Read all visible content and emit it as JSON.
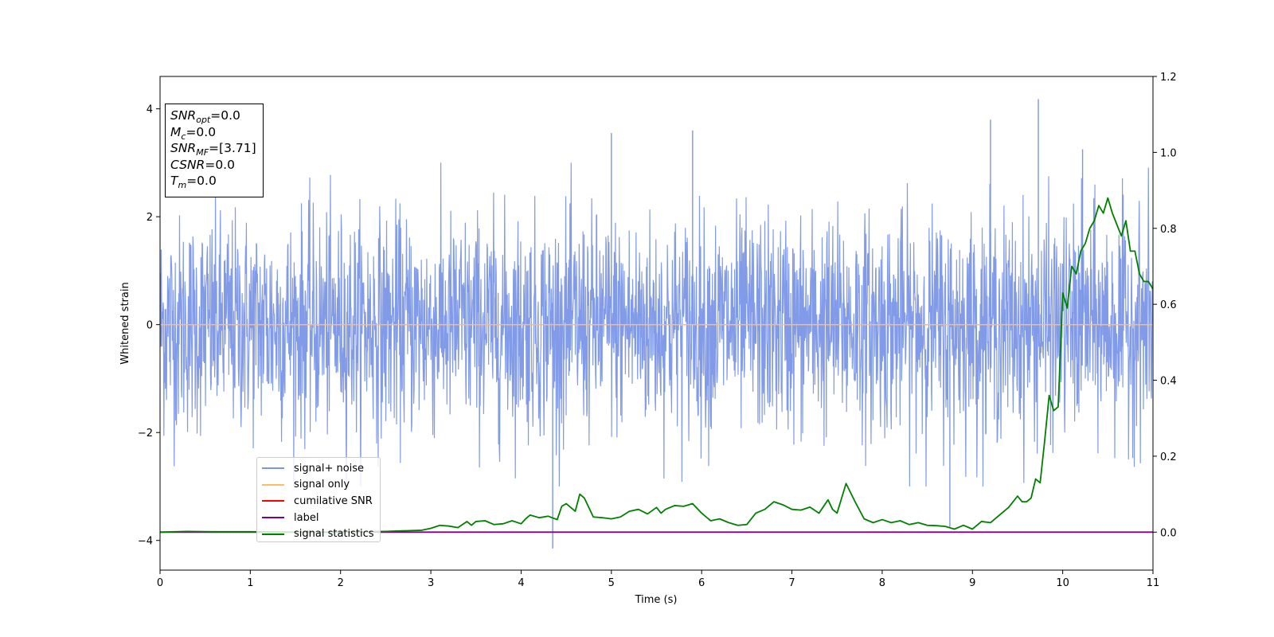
{
  "chart_data": {
    "type": "line",
    "xlabel": "Time (s)",
    "ylabel": "Whitened strain",
    "xlim": [
      0,
      11
    ],
    "ylim_left": [
      -4.55,
      4.6
    ],
    "ylim_right": [
      -0.1,
      1.2
    ],
    "x_ticks": [
      0,
      1,
      2,
      3,
      4,
      5,
      6,
      7,
      8,
      9,
      10,
      11
    ],
    "y_ticks_left": [
      -4,
      -2,
      0,
      2,
      4
    ],
    "y_ticks_right": [
      "0.0",
      "0.2",
      "0.4",
      "0.6",
      "0.8",
      "1.0",
      "1.2"
    ],
    "legend_position": "lower-left",
    "series": [
      {
        "name": "signal+ noise",
        "color": "#7b96e8",
        "axis": "left",
        "description_values": "dense noise trace, typical envelope ±2",
        "envelope": {
          "typical_max": 2.0,
          "typical_min": -2.0
        },
        "notable_peaks": [
          {
            "x": 4.35,
            "y": -4.15
          },
          {
            "x": 5.0,
            "y": 3.55
          },
          {
            "x": 5.9,
            "y": 3.6
          },
          {
            "x": 8.75,
            "y": -3.75
          },
          {
            "x": 9.2,
            "y": 3.8
          },
          {
            "x": 9.73,
            "y": 4.18
          },
          {
            "x": 10.22,
            "y": 3.25
          }
        ]
      },
      {
        "name": "signal only",
        "color": "#ffbb66",
        "axis": "left",
        "x": [
          0,
          11
        ],
        "values": [
          0,
          0
        ]
      },
      {
        "name": "cumilative SNR",
        "color": "#ff0000",
        "axis": "right",
        "x": [],
        "values": []
      },
      {
        "name": "label",
        "color": "#800080",
        "axis": "right",
        "x": [
          0,
          11
        ],
        "values": [
          0,
          0
        ]
      },
      {
        "name": "signal statistics",
        "color": "#008000",
        "axis": "right",
        "x": [
          0,
          0.3,
          0.6,
          1.0,
          1.5,
          2.0,
          2.5,
          2.9,
          3.0,
          3.1,
          3.2,
          3.3,
          3.4,
          3.45,
          3.5,
          3.6,
          3.7,
          3.8,
          3.9,
          4.0,
          4.05,
          4.1,
          4.2,
          4.3,
          4.4,
          4.45,
          4.5,
          4.6,
          4.65,
          4.7,
          4.8,
          4.9,
          5.0,
          5.1,
          5.2,
          5.3,
          5.4,
          5.5,
          5.55,
          5.6,
          5.7,
          5.8,
          5.9,
          6.0,
          6.1,
          6.2,
          6.3,
          6.4,
          6.5,
          6.6,
          6.7,
          6.8,
          6.9,
          7.0,
          7.1,
          7.2,
          7.3,
          7.4,
          7.45,
          7.5,
          7.6,
          7.7,
          7.8,
          7.9,
          8.0,
          8.1,
          8.2,
          8.3,
          8.4,
          8.5,
          8.6,
          8.7,
          8.8,
          8.9,
          9.0,
          9.1,
          9.2,
          9.3,
          9.4,
          9.5,
          9.55,
          9.6,
          9.65,
          9.7,
          9.75,
          9.8,
          9.85,
          9.9,
          9.95,
          10.0,
          10.05,
          10.1,
          10.15,
          10.2,
          10.25,
          10.3,
          10.35,
          10.4,
          10.45,
          10.5,
          10.55,
          10.6,
          10.65,
          10.7,
          10.75,
          10.8,
          10.85,
          10.9,
          10.95,
          11.0
        ],
        "values": [
          0.0,
          0.002,
          0.001,
          0.001,
          0.0,
          0.0,
          0.002,
          0.005,
          0.01,
          0.018,
          0.016,
          0.012,
          0.028,
          0.018,
          0.028,
          0.03,
          0.02,
          0.022,
          0.03,
          0.022,
          0.035,
          0.045,
          0.038,
          0.042,
          0.033,
          0.068,
          0.075,
          0.055,
          0.1,
          0.09,
          0.04,
          0.038,
          0.035,
          0.04,
          0.055,
          0.06,
          0.048,
          0.065,
          0.05,
          0.06,
          0.07,
          0.068,
          0.075,
          0.05,
          0.03,
          0.035,
          0.025,
          0.018,
          0.02,
          0.05,
          0.06,
          0.08,
          0.072,
          0.06,
          0.058,
          0.066,
          0.05,
          0.085,
          0.06,
          0.05,
          0.128,
          0.08,
          0.035,
          0.025,
          0.033,
          0.025,
          0.03,
          0.02,
          0.025,
          0.018,
          0.017,
          0.015,
          0.008,
          0.018,
          0.008,
          0.028,
          0.025,
          0.045,
          0.065,
          0.095,
          0.08,
          0.08,
          0.09,
          0.14,
          0.13,
          0.24,
          0.36,
          0.32,
          0.33,
          0.63,
          0.59,
          0.7,
          0.68,
          0.74,
          0.76,
          0.8,
          0.82,
          0.86,
          0.84,
          0.88,
          0.84,
          0.81,
          0.78,
          0.82,
          0.74,
          0.74,
          0.68,
          0.66,
          0.66,
          0.64
        ]
      }
    ]
  },
  "stats_box": {
    "snr_opt": {
      "sym": "SNR",
      "sub": "opt",
      "value": "=0.0"
    },
    "mc": {
      "sym": "M",
      "sub": "c",
      "value": "=0.0"
    },
    "snr_mf": {
      "sym": "SNR",
      "sub": "MF",
      "value": "=[3.71]"
    },
    "csnr": {
      "sym": "CSNR",
      "value": "=0.0"
    },
    "tm": {
      "sym": "T",
      "sub": "m",
      "value": "=0.0"
    }
  }
}
